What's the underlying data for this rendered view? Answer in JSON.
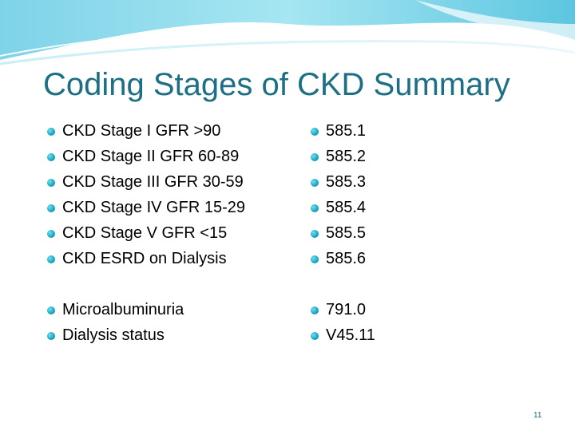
{
  "slide": {
    "title": "Coding Stages of CKD Summary",
    "left_items": [
      "CKD Stage I GFR >90",
      "CKD Stage II GFR 60-89",
      "CKD Stage III GFR 30-59",
      "CKD Stage IV GFR 15-29",
      "CKD Stage V GFR <15",
      "CKD ESRD on Dialysis",
      "Microalbuminuria",
      "Dialysis status"
    ],
    "right_items": [
      "585.1",
      "585.2",
      "585.3",
      "585.4",
      "585.5",
      "585.6",
      "791.0",
      "V45.11"
    ],
    "page_number": "11"
  },
  "colors": {
    "title": "#1d6f86",
    "bullet": "#16a4c0",
    "wave": "#5cc6e0"
  }
}
